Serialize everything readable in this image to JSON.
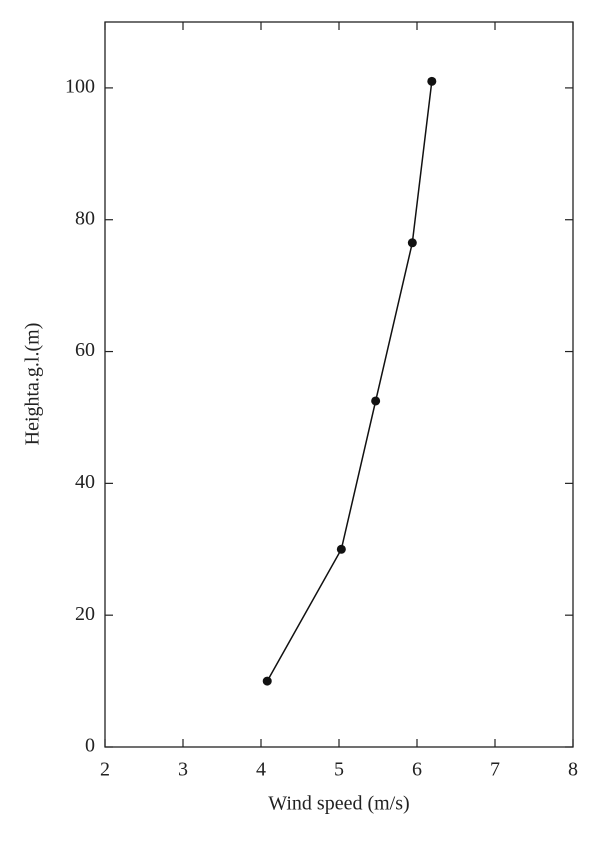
{
  "chart_data": {
    "type": "line",
    "xlabel": "Wind speed (m/s)",
    "ylabel": "Heighta.g.l.(m)",
    "x": [
      4.08,
      5.03,
      5.47,
      5.94,
      6.19
    ],
    "series": [
      {
        "color": "#111111",
        "values": [
          10,
          30,
          52.5,
          76.5,
          101
        ]
      }
    ],
    "xlim": [
      2,
      8
    ],
    "ylim": [
      0,
      110
    ],
    "xticks": [
      2,
      3,
      4,
      5,
      6,
      7,
      8
    ],
    "yticks": [
      0,
      20,
      40,
      60,
      80,
      100
    ],
    "grid": false
  }
}
